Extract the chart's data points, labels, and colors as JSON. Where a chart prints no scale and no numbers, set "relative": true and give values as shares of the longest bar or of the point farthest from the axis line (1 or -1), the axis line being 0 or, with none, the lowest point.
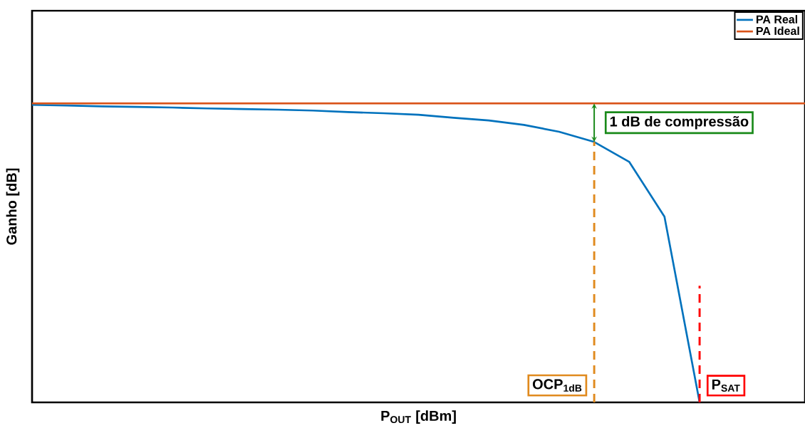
{
  "chart_data": {
    "type": "line",
    "relative": true,
    "xlabel": "P$_{OUT}$ [dBm]",
    "ylabel": "Ganho  [dB]",
    "categories": [
      null,
      null,
      null,
      null,
      null,
      null,
      null,
      null,
      null,
      null,
      null,
      null,
      null,
      null,
      null,
      null,
      null,
      null,
      null,
      null,
      null,
      null,
      null
    ],
    "series": [
      {
        "name": "PA Real",
        "color": "#0072bd",
        "values": [
          0.995,
          0.993,
          0.99,
          0.988,
          0.986,
          0.983,
          0.981,
          0.979,
          0.976,
          0.971,
          0.967,
          0.962,
          0.952,
          0.943,
          0.928,
          0.905,
          0.871,
          0.804,
          0.621,
          0,
          null,
          null,
          null
        ]
      },
      {
        "name": "PA Ideal",
        "color": "#d95319",
        "values": [
          1,
          1,
          1,
          1,
          1,
          1,
          1,
          1,
          1,
          1,
          1,
          1,
          1,
          1,
          1,
          1,
          1,
          1,
          1,
          1,
          1,
          1,
          1
        ]
      }
    ],
    "annotations": [
      "1 dB de compressão",
      "OCP$_{1dB}$",
      "P$_{SAT}$"
    ],
    "legend": "top right",
    "tick_labels": false,
    "line_style": "solid"
  }
}
